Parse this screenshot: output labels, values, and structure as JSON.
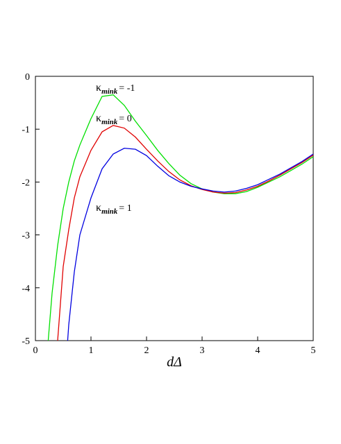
{
  "chart_data": {
    "type": "line",
    "x_label": "dΔ",
    "xlim": [
      0,
      5
    ],
    "xticks": [
      0,
      1,
      2,
      3,
      4,
      5
    ],
    "ylim": [
      -5,
      0
    ],
    "yticks": [
      0,
      -1,
      -2,
      -3,
      -4,
      -5
    ],
    "series": [
      {
        "label_symbol": "κ",
        "label_subscript": "mink",
        "label_suffix": "= -1",
        "color": "#00e000",
        "x": [
          0.23,
          0.3,
          0.4,
          0.5,
          0.6,
          0.7,
          0.8,
          1.0,
          1.2,
          1.4,
          1.6,
          1.8,
          2.0,
          2.2,
          2.4,
          2.6,
          2.8,
          3.0,
          3.2,
          3.4,
          3.6,
          3.8,
          4.0,
          4.2,
          4.4,
          4.6,
          4.8,
          5.0
        ],
        "values": [
          -5,
          -4.1,
          -3.2,
          -2.5,
          -2.0,
          -1.6,
          -1.3,
          -0.8,
          -0.38,
          -0.35,
          -0.55,
          -0.85,
          -1.12,
          -1.4,
          -1.65,
          -1.87,
          -2.03,
          -2.13,
          -2.19,
          -2.22,
          -2.22,
          -2.18,
          -2.1,
          -2.0,
          -1.9,
          -1.78,
          -1.66,
          -1.52
        ]
      },
      {
        "label_symbol": "κ",
        "label_subscript": "mink",
        "label_suffix": "= 0",
        "color": "#e00000",
        "x": [
          0.4,
          0.5,
          0.6,
          0.7,
          0.8,
          1.0,
          1.2,
          1.4,
          1.6,
          1.8,
          2.0,
          2.2,
          2.4,
          2.6,
          2.8,
          3.0,
          3.2,
          3.4,
          3.6,
          3.8,
          4.0,
          4.2,
          4.4,
          4.6,
          4.8,
          5.0
        ],
        "values": [
          -5,
          -3.6,
          -2.9,
          -2.3,
          -1.9,
          -1.4,
          -1.05,
          -0.93,
          -0.98,
          -1.15,
          -1.38,
          -1.6,
          -1.8,
          -1.96,
          -2.07,
          -2.14,
          -2.19,
          -2.21,
          -2.2,
          -2.15,
          -2.08,
          -1.98,
          -1.87,
          -1.75,
          -1.63,
          -1.49
        ]
      },
      {
        "label_symbol": "κ",
        "label_subscript": "mink",
        "label_suffix": "= 1",
        "color": "#0000e0",
        "x": [
          0.58,
          0.6,
          0.7,
          0.8,
          1.0,
          1.2,
          1.4,
          1.6,
          1.8,
          2.0,
          2.2,
          2.4,
          2.6,
          2.8,
          3.0,
          3.2,
          3.4,
          3.6,
          3.8,
          4.0,
          4.2,
          4.4,
          4.6,
          4.8,
          5.0
        ],
        "values": [
          -5,
          -4.7,
          -3.7,
          -3.0,
          -2.3,
          -1.75,
          -1.47,
          -1.36,
          -1.38,
          -1.5,
          -1.7,
          -1.88,
          -2.0,
          -2.08,
          -2.13,
          -2.17,
          -2.19,
          -2.17,
          -2.12,
          -2.05,
          -1.95,
          -1.85,
          -1.73,
          -1.61,
          -1.47
        ]
      }
    ]
  }
}
